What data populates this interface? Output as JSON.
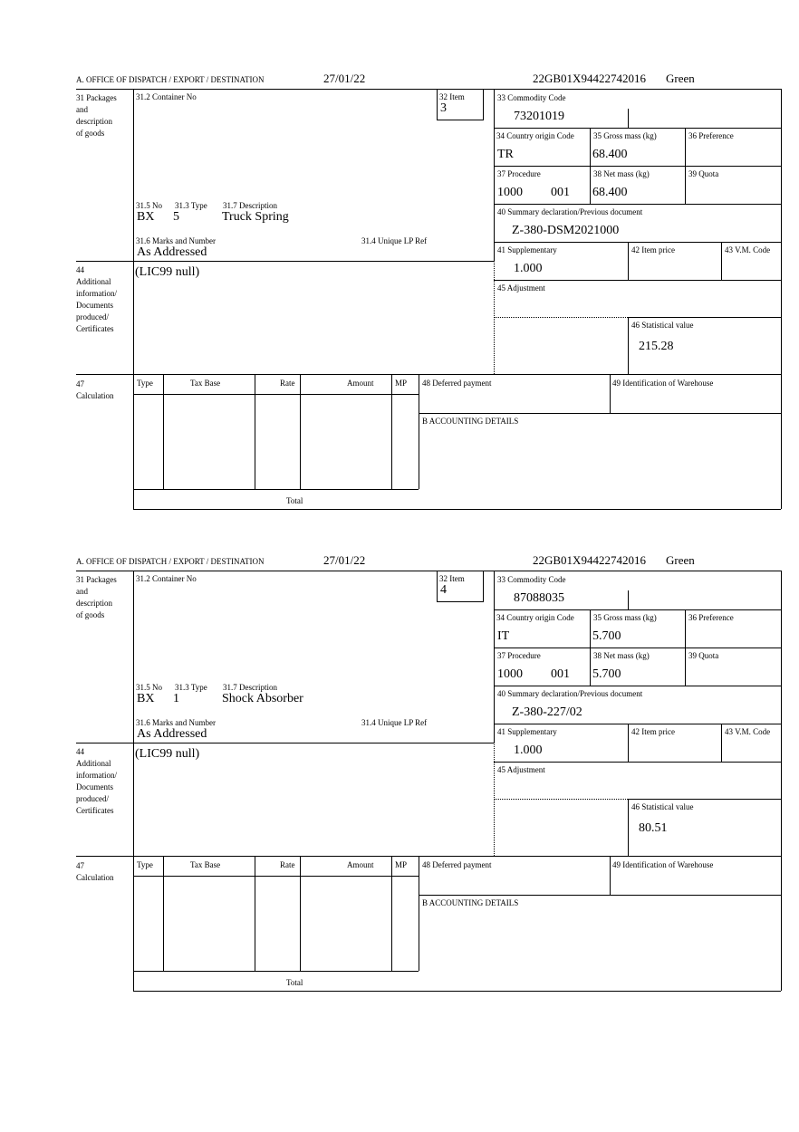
{
  "labels": {
    "office": "A. OFFICE OF DISPATCH / EXPORT / DESTINATION",
    "packages": "31 Packages\nand\ndescription\nof goods",
    "container_no": "31.2 Container No",
    "item": "32 Item",
    "commodity_code": "33 Commodity Code",
    "country_origin": "34 Country origin Code",
    "gross_mass": "35 Gross mass (kg)",
    "preference": "36 Preference",
    "procedure": "37 Procedure",
    "net_mass": "38 Net mass (kg)",
    "quota": "39 Quota",
    "summary_decl": "40 Summary declaration/Previous document",
    "supplementary": "41 Supplementary",
    "item_price": "42 Item price",
    "vm_code": "43 V.M. Code",
    "adjustment": "45 Adjustment",
    "statistical_value": "46 Statistical value",
    "no": "31.5 No",
    "type": "31.3 Type",
    "description": "31.7 Description",
    "marks": "31.6 Marks and Number",
    "unique_lp_ref": "31.4 Unique LP Ref",
    "additional_info": "44\nAdditional\ninformation/\nDocuments\nproduced/\nCertificates",
    "calculation": "47\nCalculation",
    "calc_headers": [
      "Type",
      "Tax Base",
      "Rate",
      "Amount",
      "MP"
    ],
    "total": "Total",
    "deferred_payment": "48 Deferred payment",
    "warehouse": "49 Identification of Warehouse",
    "accounting": "B ACCOUNTING DETAILS"
  },
  "forms": [
    {
      "date": "27/01/22",
      "reference": "22GB01X94422742016",
      "route": "Green",
      "item": "3",
      "commodity_code": "73201019",
      "country_origin": "TR",
      "gross_mass": "68.400",
      "procedure": "1000",
      "procedure_add": "001",
      "net_mass": "68.400",
      "summary_decl": "Z-380-DSM2021000",
      "supplementary": "1.000",
      "statistical_value": "215.28",
      "no": "BX",
      "type": "5",
      "description": "Truck Spring",
      "marks": "As Addressed",
      "additional_info": "(LIC99 null)"
    },
    {
      "date": "27/01/22",
      "reference": "22GB01X94422742016",
      "route": "Green",
      "item": "4",
      "commodity_code": "87088035",
      "country_origin": "IT",
      "gross_mass": "5.700",
      "procedure": "1000",
      "procedure_add": "001",
      "net_mass": "5.700",
      "summary_decl": "Z-380-227/02",
      "supplementary": "1.000",
      "statistical_value": "80.51",
      "no": "BX",
      "type": "1",
      "description": "Shock Absorber",
      "marks": "As Addressed",
      "additional_info": "(LIC99 null)"
    }
  ]
}
